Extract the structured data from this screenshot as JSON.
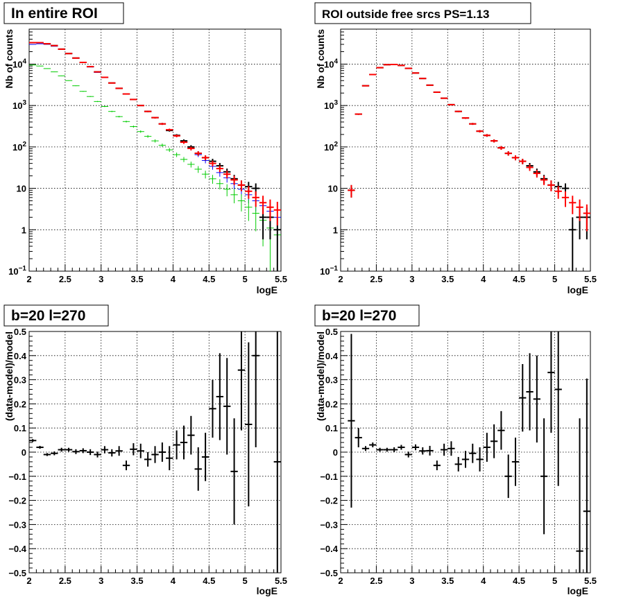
{
  "chart_data": [
    {
      "id": "p1",
      "type": "scatter",
      "title": "In entire ROI",
      "xlabel": "logE",
      "ylabel": "Nb of counts",
      "log_y": true,
      "grid": true,
      "xlim": [
        2,
        5.5
      ],
      "ylim": [
        0.1,
        70000
      ],
      "x_ticks": [
        "2",
        "2.5",
        "3",
        "3.5",
        "4",
        "4.5",
        "5",
        "5.5"
      ],
      "y_ticks": [
        "10^-1",
        "1",
        "10",
        "10^2",
        "10^3",
        "10^4"
      ],
      "x": [
        2.05,
        2.15,
        2.25,
        2.35,
        2.45,
        2.55,
        2.65,
        2.75,
        2.85,
        2.95,
        3.05,
        3.15,
        3.25,
        3.35,
        3.45,
        3.55,
        3.65,
        3.75,
        3.85,
        3.95,
        4.05,
        4.15,
        4.25,
        4.35,
        4.45,
        4.55,
        4.65,
        4.75,
        4.85,
        4.95,
        5.05,
        5.15,
        5.25,
        5.35,
        5.45
      ],
      "series": [
        {
          "color": "#0000ff",
          "style": "bin",
          "values": [
            30000,
            31000,
            30000,
            27000,
            23000,
            18000,
            14000,
            11000,
            8500,
            6300,
            4700,
            3500,
            2600,
            1900,
            1400,
            1000,
            720,
            510,
            360,
            260,
            185,
            130,
            92,
            65,
            47,
            34,
            24,
            18,
            13,
            9.5,
            7,
            5,
            3.8,
            2.8,
            2
          ]
        },
        {
          "color": "#00cc00",
          "style": "bin",
          "values": [
            9500,
            9000,
            7800,
            6500,
            5200,
            4000,
            3000,
            2200,
            1650,
            1250,
            950,
            720,
            540,
            410,
            310,
            235,
            180,
            140,
            110,
            85,
            65,
            50,
            38,
            29,
            22,
            17,
            13,
            9.5,
            7,
            5,
            3.5,
            2.5,
            1.7,
            1.1,
            0.75
          ]
        },
        {
          "color": "#000000",
          "style": "err",
          "values": [
            33000,
            33000,
            31000,
            28000,
            23000,
            18000,
            14000,
            11000,
            8700,
            6500,
            4800,
            3500,
            2600,
            1900,
            1400,
            1000,
            720,
            510,
            360,
            250,
            190,
            140,
            100,
            70,
            55,
            45,
            35,
            25,
            17,
            12,
            11,
            10,
            2,
            2,
            1
          ]
        },
        {
          "color": "#ff0000",
          "style": "err",
          "values": [
            33000,
            33000,
            31000,
            28000,
            23000,
            18000,
            14000,
            11000,
            8700,
            6500,
            4800,
            3500,
            2600,
            1900,
            1400,
            1000,
            720,
            510,
            360,
            260,
            185,
            130,
            92,
            70,
            55,
            40,
            30,
            22,
            16,
            12,
            8.5,
            6,
            4.5,
            3.5,
            3
          ]
        }
      ]
    },
    {
      "id": "p2",
      "type": "scatter",
      "title": "ROI outside free srcs PS=1.13",
      "xlabel": "logE",
      "ylabel": "Nb of counts",
      "log_y": true,
      "grid": true,
      "xlim": [
        2,
        5.5
      ],
      "ylim": [
        0.1,
        70000
      ],
      "x_ticks": [
        "2",
        "2.5",
        "3",
        "3.5",
        "4",
        "4.5",
        "5",
        "5.5"
      ],
      "y_ticks": [
        "10^-1",
        "1",
        "10",
        "10^2",
        "10^3",
        "10^4"
      ],
      "x": [
        2.15,
        2.25,
        2.35,
        2.45,
        2.55,
        2.65,
        2.75,
        2.85,
        2.95,
        3.05,
        3.15,
        3.25,
        3.35,
        3.45,
        3.55,
        3.65,
        3.75,
        3.85,
        3.95,
        4.05,
        4.15,
        4.25,
        4.35,
        4.45,
        4.55,
        4.65,
        4.75,
        4.85,
        4.95,
        5.05,
        5.15,
        5.25,
        5.35,
        5.45
      ],
      "series": [
        {
          "color": "#000000",
          "style": "err",
          "values": [
            9,
            620,
            3000,
            5600,
            8200,
            9700,
            9800,
            9300,
            7900,
            6100,
            4500,
            3100,
            2100,
            1500,
            1050,
            720,
            500,
            360,
            240,
            190,
            140,
            95,
            70,
            55,
            45,
            35,
            25,
            17,
            12,
            11,
            10,
            1,
            2,
            2
          ]
        },
        {
          "color": "#ff0000",
          "style": "err",
          "values": [
            9,
            620,
            3000,
            5600,
            8200,
            9700,
            9800,
            9300,
            7900,
            6100,
            4500,
            3100,
            2100,
            1500,
            1050,
            720,
            500,
            360,
            240,
            190,
            140,
            95,
            70,
            55,
            45,
            32,
            23,
            16,
            12,
            8.5,
            6,
            4.5,
            3.5,
            2.5
          ]
        }
      ]
    },
    {
      "id": "p3",
      "type": "scatter",
      "title": "b=20 l=270",
      "xlabel": "logE",
      "ylabel": "(data-model)/model",
      "log_y": false,
      "grid": true,
      "xlim": [
        2,
        5.5
      ],
      "ylim": [
        -0.5,
        0.5
      ],
      "x_ticks": [
        "2",
        "2.5",
        "3",
        "3.5",
        "4",
        "4.5",
        "5",
        "5.5"
      ],
      "y_ticks": [
        "-0.5",
        "-0.4",
        "-0.3",
        "-0.2",
        "-0.1",
        "0",
        "0.1",
        "0.2",
        "0.3",
        "0.4",
        "0.5"
      ],
      "x": [
        2.05,
        2.15,
        2.25,
        2.35,
        2.45,
        2.55,
        2.65,
        2.75,
        2.85,
        2.95,
        3.05,
        3.15,
        3.25,
        3.35,
        3.45,
        3.55,
        3.65,
        3.75,
        3.85,
        3.95,
        4.05,
        4.15,
        4.25,
        4.35,
        4.45,
        4.55,
        4.65,
        4.75,
        4.85,
        4.95,
        5.05,
        5.15,
        5.45
      ],
      "series": [
        {
          "color": "#000000",
          "style": "err",
          "values": [
            0.048,
            0.02,
            -0.01,
            -0.005,
            0.01,
            0.01,
            0.002,
            0.006,
            0.0,
            -0.01,
            0.01,
            -0.003,
            0.005,
            -0.055,
            0.012,
            0.005,
            -0.03,
            -0.01,
            0.0,
            -0.025,
            0.03,
            0.04,
            0.07,
            -0.07,
            -0.02,
            0.18,
            0.23,
            0.19,
            -0.08,
            0.34,
            0.115,
            0.4,
            -0.04
          ],
          "errors": [
            0.006,
            0.006,
            0.006,
            0.008,
            0.008,
            0.008,
            0.01,
            0.01,
            0.012,
            0.012,
            0.015,
            0.015,
            0.02,
            0.02,
            0.025,
            0.03,
            0.03,
            0.035,
            0.04,
            0.05,
            0.06,
            0.07,
            0.08,
            0.09,
            0.1,
            0.12,
            0.18,
            0.2,
            0.22,
            0.25,
            0.34,
            0.38,
            0.55
          ]
        }
      ]
    },
    {
      "id": "p4",
      "type": "scatter",
      "title": "b=20 l=270",
      "xlabel": "logE",
      "ylabel": "(data-model)/model",
      "log_y": false,
      "grid": true,
      "xlim": [
        2,
        5.5
      ],
      "ylim": [
        -0.5,
        0.5
      ],
      "x_ticks": [
        "2",
        "2.5",
        "3",
        "3.5",
        "4",
        "4.5",
        "5",
        "5.5"
      ],
      "y_ticks": [
        "-0.5",
        "-0.4",
        "-0.3",
        "-0.2",
        "-0.1",
        "0",
        "0.1",
        "0.2",
        "0.3",
        "0.4",
        "0.5"
      ],
      "x": [
        2.15,
        2.25,
        2.35,
        2.45,
        2.55,
        2.65,
        2.75,
        2.85,
        2.95,
        3.05,
        3.15,
        3.25,
        3.35,
        3.45,
        3.55,
        3.65,
        3.75,
        3.85,
        3.95,
        4.05,
        4.15,
        4.25,
        4.35,
        4.45,
        4.55,
        4.65,
        4.75,
        4.85,
        4.95,
        5.05,
        5.35,
        5.45
      ],
      "series": [
        {
          "color": "#000000",
          "style": "err",
          "values": [
            0.13,
            0.06,
            0.015,
            0.03,
            0.01,
            0.01,
            0.01,
            0.02,
            -0.01,
            0.02,
            0.005,
            0.006,
            -0.055,
            0.01,
            0.015,
            -0.05,
            -0.03,
            -0.005,
            -0.03,
            0.02,
            0.045,
            0.09,
            -0.1,
            -0.04,
            0.225,
            0.25,
            0.22,
            -0.1,
            0.33,
            0.26,
            -0.41,
            -0.245
          ],
          "errors": [
            0.36,
            0.04,
            0.01,
            0.01,
            0.008,
            0.008,
            0.01,
            0.01,
            0.012,
            0.012,
            0.015,
            0.02,
            0.02,
            0.025,
            0.03,
            0.03,
            0.035,
            0.04,
            0.05,
            0.06,
            0.07,
            0.08,
            0.09,
            0.1,
            0.14,
            0.16,
            0.18,
            0.24,
            0.25,
            0.4,
            0.55,
            0.55
          ]
        }
      ]
    }
  ]
}
